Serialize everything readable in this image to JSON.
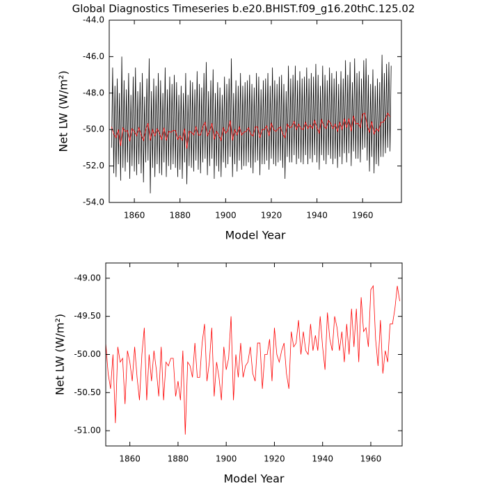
{
  "chart_data": [
    {
      "type": "line",
      "title": "Global Diagnostics Timeseries b.e20.BHIST.f09_g16.20thC.125.02",
      "x_label": "Model Year",
      "y_label": "Net LW (W/m²)",
      "xlim": [
        1849,
        1977
      ],
      "xticks": [
        1860,
        1880,
        1900,
        1920,
        1940,
        1960
      ],
      "ylim": [
        -54,
        -44
      ],
      "yticks": [
        {
          "value": -54,
          "label": "-54.0"
        },
        {
          "value": -52,
          "label": "-52.0"
        },
        {
          "value": -50,
          "label": "-50.0"
        },
        {
          "value": -48,
          "label": "-48.0"
        },
        {
          "value": -46,
          "label": "-46.0"
        },
        {
          "value": -44,
          "label": "-44.0"
        }
      ],
      "x": [
        1850,
        1851,
        1852,
        1853,
        1854,
        1855,
        1856,
        1857,
        1858,
        1859,
        1860,
        1861,
        1862,
        1863,
        1864,
        1865,
        1866,
        1867,
        1868,
        1869,
        1870,
        1871,
        1872,
        1873,
        1874,
        1875,
        1876,
        1877,
        1878,
        1879,
        1880,
        1881,
        1882,
        1883,
        1884,
        1885,
        1886,
        1887,
        1888,
        1889,
        1890,
        1891,
        1892,
        1893,
        1894,
        1895,
        1896,
        1897,
        1898,
        1899,
        1900,
        1901,
        1902,
        1903,
        1904,
        1905,
        1906,
        1907,
        1908,
        1909,
        1910,
        1911,
        1912,
        1913,
        1914,
        1915,
        1916,
        1917,
        1918,
        1919,
        1920,
        1921,
        1922,
        1923,
        1924,
        1925,
        1926,
        1927,
        1928,
        1929,
        1930,
        1931,
        1932,
        1933,
        1934,
        1935,
        1936,
        1937,
        1938,
        1939,
        1940,
        1941,
        1942,
        1943,
        1944,
        1945,
        1946,
        1947,
        1948,
        1949,
        1950,
        1951,
        1952,
        1953,
        1954,
        1955,
        1956,
        1957,
        1958,
        1959,
        1960,
        1961,
        1962,
        1963,
        1964,
        1965,
        1966,
        1967,
        1968,
        1969,
        1970,
        1971,
        1972
      ],
      "series": [
        {
          "color": "#000000",
          "x": [
            1850,
            1850.5,
            1851,
            1851.5,
            1852,
            1852.5,
            1853,
            1853.5,
            1854,
            1854.5,
            1855,
            1855.5,
            1856,
            1856.5,
            1857,
            1857.5,
            1858,
            1858.5,
            1859,
            1859.5,
            1860,
            1860.5,
            1861,
            1861.5,
            1862,
            1862.5,
            1863,
            1863.5,
            1864,
            1864.5,
            1865,
            1865.5,
            1866,
            1866.5,
            1867,
            1867.5,
            1868,
            1868.5,
            1869,
            1869.5,
            1870,
            1870.5,
            1871,
            1871.5,
            1872,
            1872.5,
            1873,
            1873.5,
            1874,
            1874.5,
            1875,
            1875.5,
            1876,
            1876.5,
            1877,
            1877.5,
            1878,
            1878.5,
            1879,
            1879.5,
            1880,
            1880.5,
            1881,
            1881.5,
            1882,
            1882.5,
            1883,
            1883.5,
            1884,
            1884.5,
            1885,
            1885.5,
            1886,
            1886.5,
            1887,
            1887.5,
            1888,
            1888.5,
            1889,
            1889.5,
            1890,
            1890.5,
            1891,
            1891.5,
            1892,
            1892.5,
            1893,
            1893.5,
            1894,
            1894.5,
            1895,
            1895.5,
            1896,
            1896.5,
            1897,
            1897.5,
            1898,
            1898.5,
            1899,
            1899.5,
            1900,
            1900.5,
            1901,
            1901.5,
            1902,
            1902.5,
            1903,
            1903.5,
            1904,
            1904.5,
            1905,
            1905.5,
            1906,
            1906.5,
            1907,
            1907.5,
            1908,
            1908.5,
            1909,
            1909.5,
            1910,
            1910.5,
            1911,
            1911.5,
            1912,
            1912.5,
            1913,
            1913.5,
            1914,
            1914.5,
            1915,
            1915.5,
            1916,
            1916.5,
            1917,
            1917.5,
            1918,
            1918.5,
            1919,
            1919.5,
            1920,
            1920.5,
            1921,
            1921.5,
            1922,
            1922.5,
            1923,
            1923.5,
            1924,
            1924.5,
            1925,
            1925.5,
            1926,
            1926.5,
            1927,
            1927.5,
            1928,
            1928.5,
            1929,
            1929.5,
            1930,
            1930.5,
            1931,
            1931.5,
            1932,
            1932.5,
            1933,
            1933.5,
            1934,
            1934.5,
            1935,
            1935.5,
            1936,
            1936.5,
            1937,
            1937.5,
            1938,
            1938.5,
            1939,
            1939.5,
            1940,
            1940.5,
            1941,
            1941.5,
            1942,
            1942.5,
            1943,
            1943.5,
            1944,
            1944.5,
            1945,
            1945.5,
            1946,
            1946.5,
            1947,
            1947.5,
            1948,
            1948.5,
            1949,
            1949.5,
            1950,
            1950.5,
            1951,
            1951.5,
            1952,
            1952.5,
            1953,
            1953.5,
            1954,
            1954.5,
            1955,
            1955.5,
            1956,
            1956.5,
            1957,
            1957.5,
            1958,
            1958.5,
            1959,
            1959.5,
            1960,
            1960.5,
            1961,
            1961.5,
            1962,
            1962.5,
            1963,
            1963.5,
            1964,
            1964.5,
            1965,
            1965.5,
            1966,
            1966.5,
            1967,
            1967.5,
            1968,
            1968.5,
            1969,
            1969.5,
            1970,
            1970.5,
            1971,
            1971.5,
            1972,
            1972.5
          ],
          "values": [
            -51.0,
            -46.6,
            -52.4,
            -47.6,
            -52.6,
            -47.2,
            -51.9,
            -48.0,
            -52.8,
            -46.0,
            -52.1,
            -47.3,
            -52.3,
            -47.8,
            -51.8,
            -46.9,
            -52.7,
            -48.1,
            -52.0,
            -47.1,
            -52.3,
            -46.6,
            -52.5,
            -47.9,
            -51.9,
            -47.4,
            -52.4,
            -46.9,
            -52.9,
            -48.2,
            -51.8,
            -47.2,
            -51.7,
            -46.1,
            -53.5,
            -47.9,
            -52.1,
            -47.2,
            -52.6,
            -47.6,
            -51.9,
            -46.9,
            -52.4,
            -47.3,
            -52.5,
            -48.0,
            -51.8,
            -46.6,
            -52.6,
            -47.8,
            -52.0,
            -47.1,
            -52.2,
            -47.5,
            -51.9,
            -47.0,
            -52.1,
            -47.4,
            -52.6,
            -48.1,
            -52.2,
            -47.6,
            -52.7,
            -48.0,
            -51.8,
            -46.9,
            -53.0,
            -48.1,
            -52.0,
            -47.3,
            -52.1,
            -47.4,
            -52.3,
            -47.8,
            -51.7,
            -46.8,
            -52.2,
            -47.5,
            -52.4,
            -47.7,
            -51.8,
            -46.9,
            -51.6,
            -46.3,
            -52.5,
            -47.9,
            -52.0,
            -47.3,
            -51.6,
            -46.7,
            -52.7,
            -48.0,
            -52.0,
            -47.4,
            -52.3,
            -47.7,
            -52.6,
            -48.1,
            -51.8,
            -47.1,
            -52.1,
            -47.5,
            -51.9,
            -47.2,
            -51.5,
            -46.1,
            -52.6,
            -48.0,
            -51.9,
            -47.3,
            -52.3,
            -47.6,
            -51.7,
            -46.9,
            -52.2,
            -47.6,
            -52.0,
            -47.4,
            -52.0,
            -47.3,
            -51.8,
            -47.0,
            -52.1,
            -47.5,
            -52.4,
            -47.7,
            -51.8,
            -46.9,
            -51.7,
            -47.1,
            -52.5,
            -47.8,
            -51.9,
            -47.3,
            -51.9,
            -47.2,
            -51.7,
            -46.9,
            -52.2,
            -47.6,
            -51.6,
            -46.6,
            -51.9,
            -47.3,
            -52.0,
            -47.5,
            -51.8,
            -47.1,
            -51.7,
            -47.0,
            -52.1,
            -47.5,
            -52.7,
            -47.9,
            -51.5,
            -46.5,
            -51.8,
            -47.2,
            -51.8,
            -47.0,
            -51.4,
            -46.5,
            -51.9,
            -47.3,
            -51.6,
            -46.8,
            -51.8,
            -47.2,
            -51.9,
            -47.1,
            -51.4,
            -46.6,
            -51.9,
            -47.2,
            -51.6,
            -46.9,
            -51.8,
            -47.1,
            -51.4,
            -46.4,
            -51.8,
            -47.0,
            -52.2,
            -47.6,
            -51.4,
            -46.5,
            -51.7,
            -47.0,
            -51.9,
            -47.3,
            -51.4,
            -46.6,
            -51.6,
            -46.9,
            -51.9,
            -47.2,
            -51.6,
            -46.8,
            -52.1,
            -47.5,
            -51.5,
            -46.8,
            -51.9,
            -47.2,
            -51.3,
            -46.2,
            -51.8,
            -47.0,
            -51.3,
            -46.3,
            -52.0,
            -47.4,
            -51.2,
            -46.1,
            -51.6,
            -46.9,
            -51.6,
            -46.8,
            -51.8,
            -47.2,
            -51.1,
            -46.2,
            -51.0,
            -46.1,
            -51.7,
            -47.0,
            -52.3,
            -47.5,
            -51.5,
            -46.7,
            -52.4,
            -47.6,
            -51.9,
            -47.2,
            -52.0,
            -47.4,
            -51.5,
            -45.9,
            -51.5,
            -46.9,
            -51.3,
            -46.4,
            -51.0,
            -46.3,
            -51.2,
            -46.5
          ]
        },
        {
          "color": "#ff0000",
          "values": [
            -49.85,
            -50.25,
            -50.45,
            -50.0,
            -50.9,
            -49.9,
            -50.1,
            -50.05,
            -50.65,
            -49.95,
            -50.1,
            -50.35,
            -49.9,
            -50.3,
            -50.6,
            -50.0,
            -49.65,
            -50.6,
            -50.0,
            -50.35,
            -49.95,
            -50.2,
            -50.55,
            -49.9,
            -50.6,
            -50.1,
            -50.15,
            -50.05,
            -50.05,
            -50.55,
            -50.35,
            -50.6,
            -49.95,
            -51.05,
            -50.1,
            -50.15,
            -50.3,
            -49.85,
            -50.3,
            -50.3,
            -49.85,
            -49.6,
            -50.35,
            -50.1,
            -49.65,
            -50.55,
            -50.1,
            -50.3,
            -50.6,
            -49.9,
            -50.2,
            -50.05,
            -49.5,
            -50.6,
            -50.0,
            -50.3,
            -49.85,
            -50.3,
            -50.15,
            -50.1,
            -49.9,
            -50.25,
            -50.35,
            -49.85,
            -49.85,
            -50.45,
            -50.0,
            -50.0,
            -49.8,
            -50.35,
            -49.65,
            -50.0,
            -50.1,
            -49.95,
            -49.85,
            -50.25,
            -50.45,
            -49.7,
            -49.9,
            -49.85,
            -49.55,
            -50.0,
            -49.7,
            -49.95,
            -50.0,
            -49.6,
            -49.95,
            -49.75,
            -49.95,
            -49.5,
            -49.9,
            -50.2,
            -49.45,
            -49.8,
            -49.95,
            -49.5,
            -49.65,
            -49.95,
            -49.7,
            -50.1,
            -49.6,
            -50.0,
            -49.4,
            -49.9,
            -49.4,
            -50.1,
            -49.25,
            -49.7,
            -49.65,
            -49.9,
            -49.15,
            -49.1,
            -49.8,
            -50.15,
            -49.55,
            -50.25,
            -49.95,
            -50.1,
            -49.6,
            -49.6,
            -49.4,
            -49.1,
            -49.3
          ]
        }
      ]
    },
    {
      "type": "line",
      "x_label": "Model Year",
      "y_label": "Net LW (W/m²)",
      "xlim": [
        1850,
        1973
      ],
      "xticks": [
        1860,
        1880,
        1900,
        1920,
        1940,
        1960
      ],
      "ylim": [
        -51.2,
        -48.8
      ],
      "yticks": [
        {
          "value": -51,
          "label": "-51.00"
        },
        {
          "value": -50.5,
          "label": "-50.50"
        },
        {
          "value": -50,
          "label": "-50.00"
        },
        {
          "value": -49.5,
          "label": "-49.50"
        },
        {
          "value": -49,
          "label": "-49.00"
        }
      ],
      "x": [
        1850,
        1851,
        1852,
        1853,
        1854,
        1855,
        1856,
        1857,
        1858,
        1859,
        1860,
        1861,
        1862,
        1863,
        1864,
        1865,
        1866,
        1867,
        1868,
        1869,
        1870,
        1871,
        1872,
        1873,
        1874,
        1875,
        1876,
        1877,
        1878,
        1879,
        1880,
        1881,
        1882,
        1883,
        1884,
        1885,
        1886,
        1887,
        1888,
        1889,
        1890,
        1891,
        1892,
        1893,
        1894,
        1895,
        1896,
        1897,
        1898,
        1899,
        1900,
        1901,
        1902,
        1903,
        1904,
        1905,
        1906,
        1907,
        1908,
        1909,
        1910,
        1911,
        1912,
        1913,
        1914,
        1915,
        1916,
        1917,
        1918,
        1919,
        1920,
        1921,
        1922,
        1923,
        1924,
        1925,
        1926,
        1927,
        1928,
        1929,
        1930,
        1931,
        1932,
        1933,
        1934,
        1935,
        1936,
        1937,
        1938,
        1939,
        1940,
        1941,
        1942,
        1943,
        1944,
        1945,
        1946,
        1947,
        1948,
        1949,
        1950,
        1951,
        1952,
        1953,
        1954,
        1955,
        1956,
        1957,
        1958,
        1959,
        1960,
        1961,
        1962,
        1963,
        1964,
        1965,
        1966,
        1967,
        1968,
        1969,
        1970,
        1971,
        1972
      ],
      "series": [
        {
          "color": "#ff0000",
          "values": [
            -49.85,
            -50.25,
            -50.45,
            -50.0,
            -50.9,
            -49.9,
            -50.1,
            -50.05,
            -50.65,
            -49.95,
            -50.1,
            -50.35,
            -49.9,
            -50.3,
            -50.6,
            -50.0,
            -49.65,
            -50.6,
            -50.0,
            -50.35,
            -49.95,
            -50.2,
            -50.55,
            -49.9,
            -50.6,
            -50.1,
            -50.15,
            -50.05,
            -50.05,
            -50.55,
            -50.35,
            -50.6,
            -49.95,
            -51.05,
            -50.1,
            -50.15,
            -50.3,
            -49.85,
            -50.3,
            -50.3,
            -49.85,
            -49.6,
            -50.35,
            -50.1,
            -49.65,
            -50.55,
            -50.1,
            -50.3,
            -50.6,
            -49.9,
            -50.2,
            -50.05,
            -49.5,
            -50.6,
            -50.0,
            -50.3,
            -49.85,
            -50.3,
            -50.15,
            -50.1,
            -49.9,
            -50.25,
            -50.35,
            -49.85,
            -49.85,
            -50.45,
            -50.0,
            -50.0,
            -49.8,
            -50.35,
            -49.65,
            -50.0,
            -50.1,
            -49.95,
            -49.85,
            -50.25,
            -50.45,
            -49.7,
            -49.9,
            -49.85,
            -49.55,
            -50.0,
            -49.7,
            -49.95,
            -50.0,
            -49.6,
            -49.95,
            -49.75,
            -49.95,
            -49.5,
            -49.9,
            -50.2,
            -49.45,
            -49.8,
            -49.95,
            -49.5,
            -49.65,
            -49.95,
            -49.7,
            -50.1,
            -49.6,
            -50.0,
            -49.4,
            -49.9,
            -49.4,
            -50.1,
            -49.25,
            -49.7,
            -49.65,
            -49.9,
            -49.15,
            -49.1,
            -49.8,
            -50.15,
            -49.55,
            -50.25,
            -49.95,
            -50.1,
            -49.6,
            -49.6,
            -49.4,
            -49.1,
            -49.3
          ]
        }
      ]
    }
  ]
}
